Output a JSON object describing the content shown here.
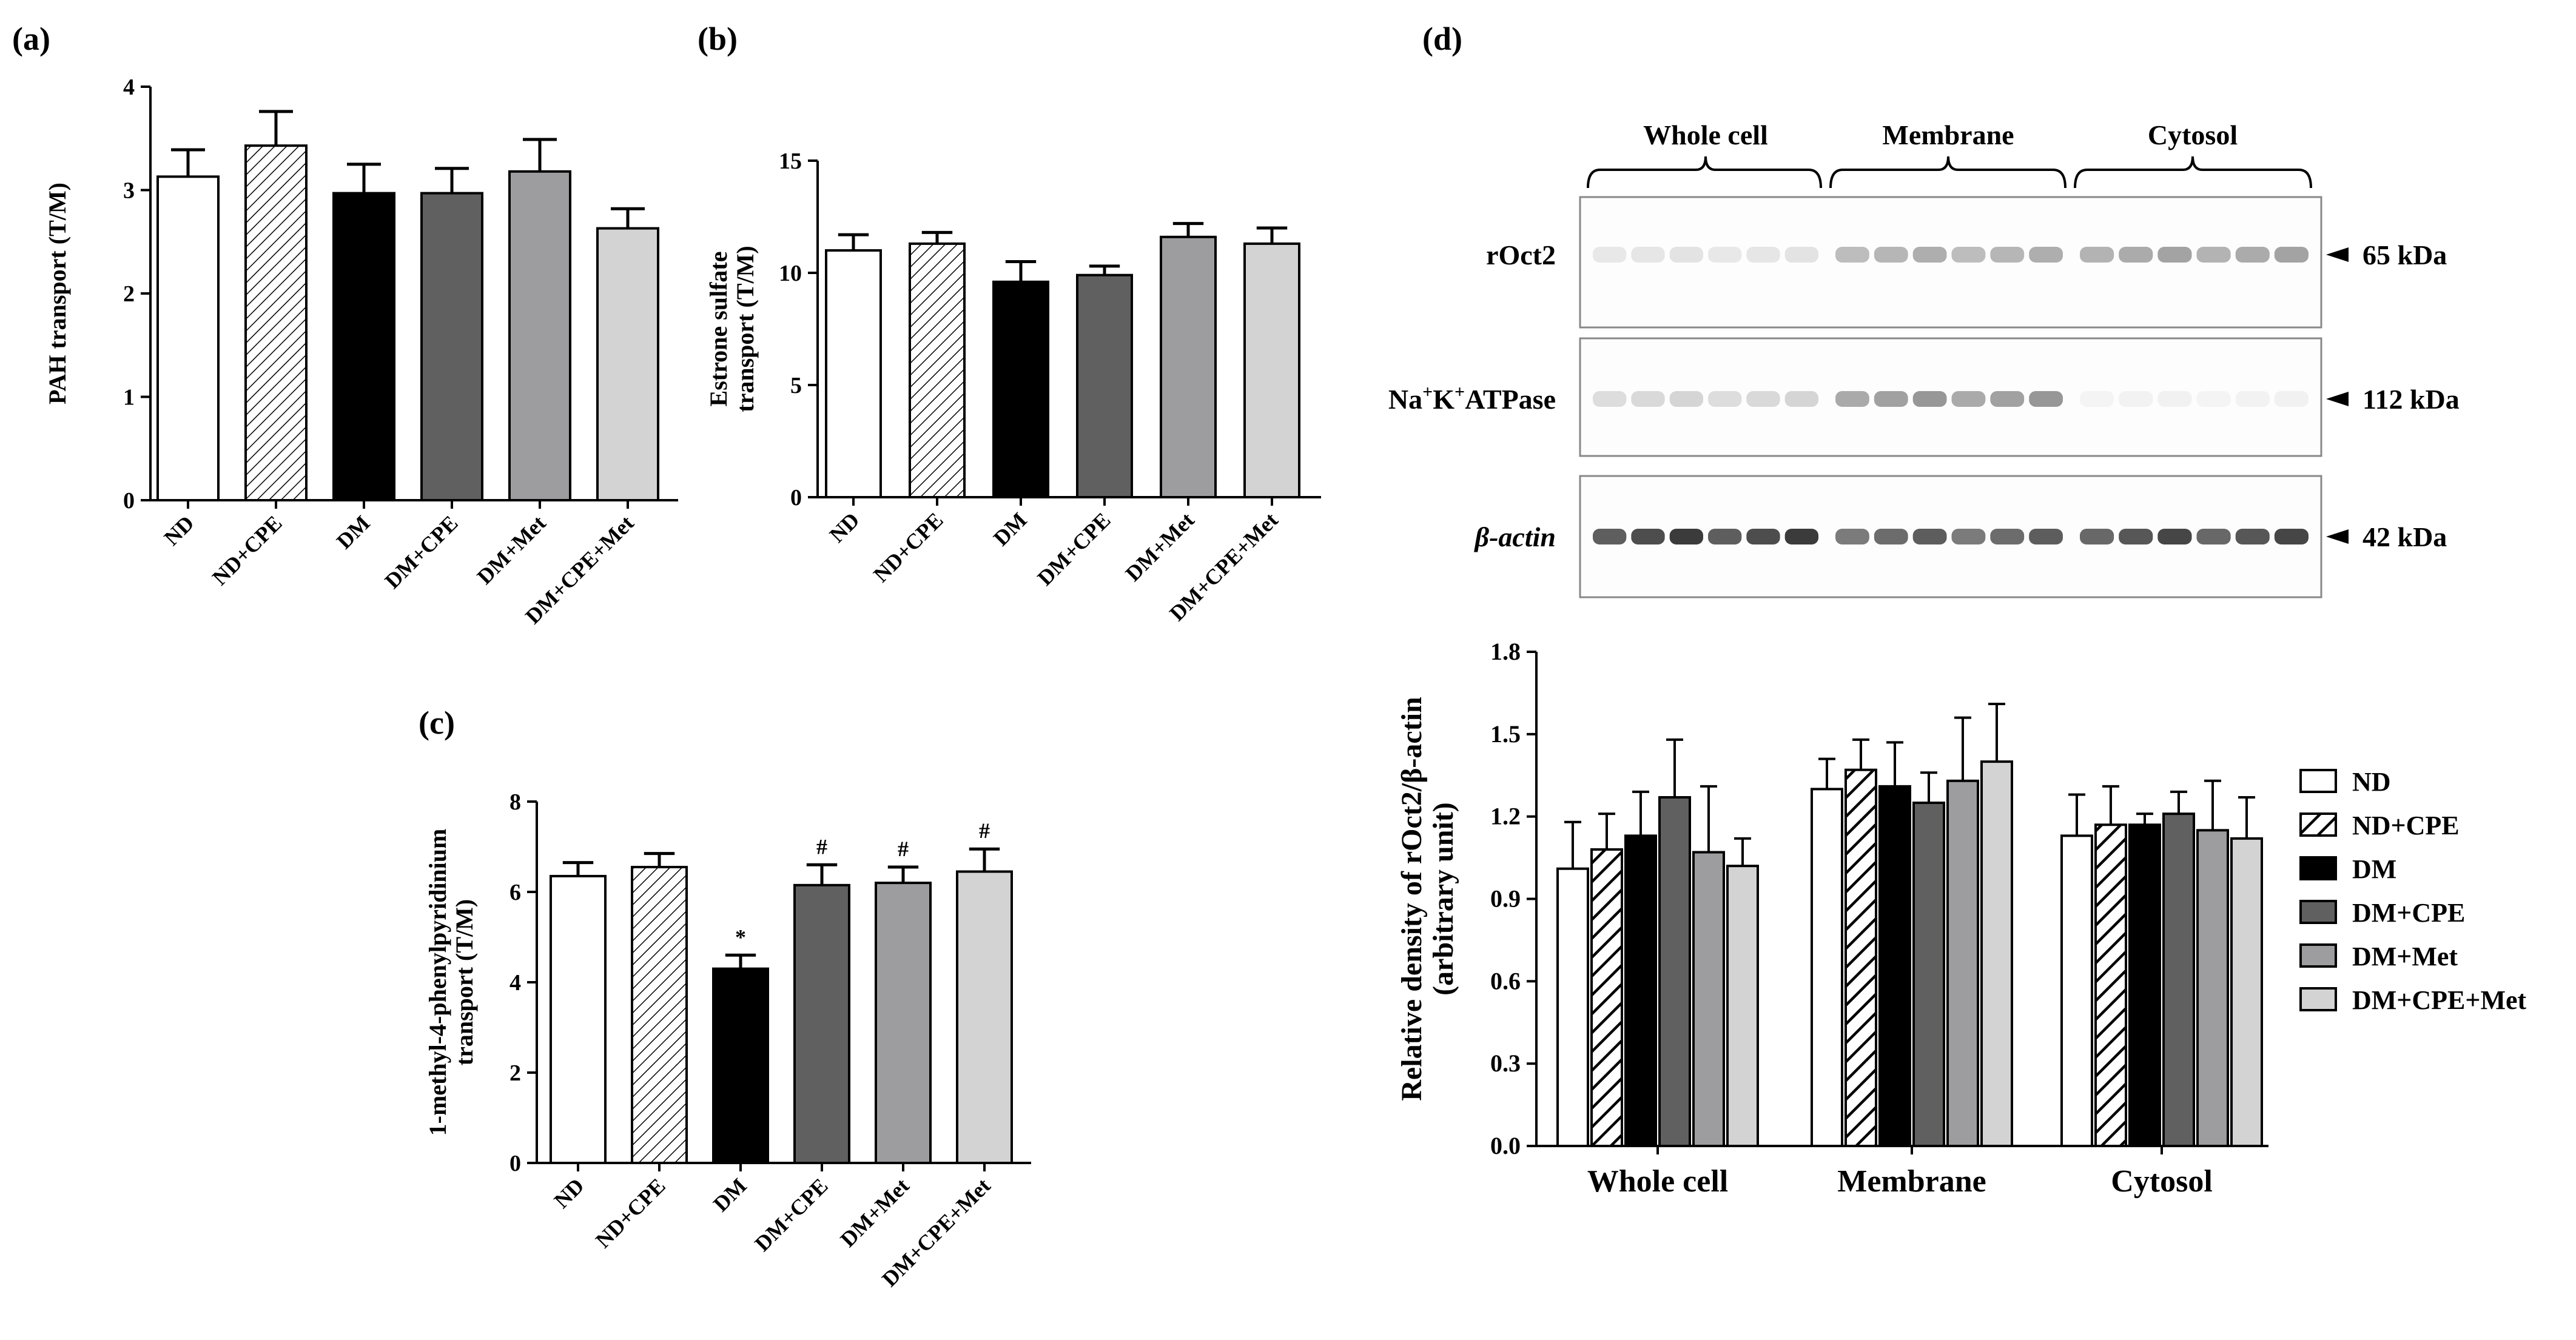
{
  "panel_labels": {
    "a": "(a)",
    "b": "(b)",
    "c": "(c)",
    "d": "(d)"
  },
  "colors": {
    "ND": "#ffffff",
    "ND+CPE": "hatch",
    "DM": "#000000",
    "DM+CPE": "#606060",
    "DM+Met": "#9d9da0",
    "DM+CPE+Met": "#d3d3d3"
  },
  "chart_data": [
    {
      "id": "a",
      "type": "bar",
      "ylabel": "PAH transport (T/M)",
      "ylim": [
        0,
        4
      ],
      "yticks": [
        "0",
        "1",
        "2",
        "3",
        "4"
      ],
      "categories": [
        "ND",
        "ND+CPE",
        "DM",
        "DM+CPE",
        "DM+Met",
        "DM+CPE+Met"
      ],
      "values": [
        3.13,
        3.43,
        2.97,
        2.97,
        3.18,
        2.63
      ],
      "errors": [
        0.26,
        0.33,
        0.28,
        0.24,
        0.31,
        0.19
      ],
      "annotations": [
        "",
        "",
        "",
        "",
        "",
        ""
      ]
    },
    {
      "id": "b",
      "type": "bar",
      "ylabel_lines": [
        "Estrone sulfate",
        "transport (T/M)"
      ],
      "ylim": [
        0,
        15
      ],
      "yticks": [
        "0",
        "5",
        "10",
        "15"
      ],
      "categories": [
        "ND",
        "ND+CPE",
        "DM",
        "DM+CPE",
        "DM+Met",
        "DM+CPE+Met"
      ],
      "values": [
        11.0,
        11.3,
        9.6,
        9.9,
        11.6,
        11.3
      ],
      "errors": [
        0.7,
        0.5,
        0.9,
        0.4,
        0.6,
        0.7
      ],
      "annotations": [
        "",
        "",
        "",
        "",
        "",
        ""
      ]
    },
    {
      "id": "c",
      "type": "bar",
      "ylabel_lines": [
        "1-methyl-4-phenylpyridinium",
        "transport (T/M)"
      ],
      "ylim": [
        0,
        8
      ],
      "yticks": [
        "0",
        "2",
        "4",
        "6",
        "8"
      ],
      "categories": [
        "ND",
        "ND+CPE",
        "DM",
        "DM+CPE",
        "DM+Met",
        "DM+CPE+Met"
      ],
      "values": [
        6.35,
        6.55,
        4.3,
        6.15,
        6.2,
        6.45
      ],
      "errors": [
        0.3,
        0.3,
        0.3,
        0.45,
        0.35,
        0.5
      ],
      "annotations": [
        "",
        "",
        "*",
        "#",
        "#",
        "#"
      ]
    },
    {
      "id": "d",
      "type": "bar",
      "ylabel_lines": [
        "Relative density of rOct2/β-actin",
        "(arbitrary unit)"
      ],
      "ylim": [
        0,
        1.8
      ],
      "yticks": [
        "0.0",
        "0.3",
        "0.6",
        "0.9",
        "1.2",
        "1.5",
        "1.8"
      ],
      "categories": [
        "Whole cell",
        "Membrane",
        "Cytosol"
      ],
      "series": [
        {
          "name": "ND",
          "values": [
            1.01,
            1.3,
            1.13
          ],
          "errors": [
            0.17,
            0.11,
            0.15
          ]
        },
        {
          "name": "ND+CPE",
          "values": [
            1.08,
            1.37,
            1.17
          ],
          "errors": [
            0.13,
            0.11,
            0.14
          ]
        },
        {
          "name": "DM",
          "values": [
            1.13,
            1.31,
            1.17
          ],
          "errors": [
            0.16,
            0.16,
            0.04
          ]
        },
        {
          "name": "DM+CPE",
          "values": [
            1.27,
            1.25,
            1.21
          ],
          "errors": [
            0.21,
            0.11,
            0.08
          ]
        },
        {
          "name": "DM+Met",
          "values": [
            1.07,
            1.33,
            1.15
          ],
          "errors": [
            0.24,
            0.23,
            0.18
          ]
        },
        {
          "name": "DM+CPE+Met",
          "values": [
            1.02,
            1.4,
            1.12
          ],
          "errors": [
            0.1,
            0.21,
            0.15
          ]
        }
      ],
      "legend_position": "right"
    }
  ],
  "blot": {
    "groups": [
      "Whole cell",
      "Membrane",
      "Cytosol"
    ],
    "rows": [
      {
        "label": "rOct2",
        "marker": "65 kDa",
        "intensity": [
          0.12,
          0.35,
          0.4
        ]
      },
      {
        "label_main": "Na",
        "label_sup1": "+",
        "label_mid": "K",
        "label_sup2": "+",
        "label_end": "ATPase",
        "marker": "112 kDa",
        "intensity": [
          0.18,
          0.45,
          0.06
        ]
      },
      {
        "label": "β-actin",
        "marker": "42 kDa",
        "intensity": [
          0.85,
          0.7,
          0.8
        ]
      }
    ]
  }
}
